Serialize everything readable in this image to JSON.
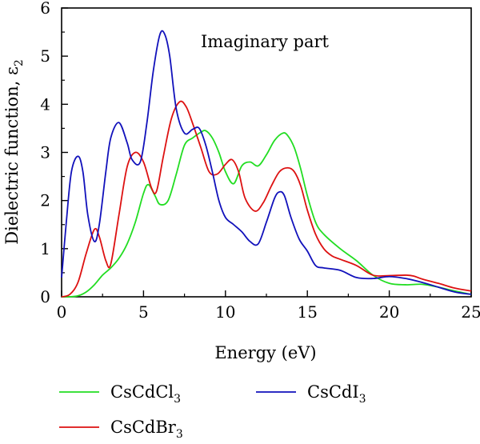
{
  "chart_data": {
    "type": "line",
    "title": "",
    "annotation": "Imaginary part",
    "xlabel": "Energy (eV)",
    "ylabel": "Dielectric function, ε",
    "ylabel_subscript": "2",
    "xlim": [
      0,
      25
    ],
    "ylim": [
      0,
      6
    ],
    "xticks": [
      0,
      5,
      10,
      15,
      20,
      25
    ],
    "yticks": [
      0,
      1,
      2,
      3,
      4,
      5,
      6
    ],
    "grid": false,
    "legend_position": "bottom",
    "series": [
      {
        "name": "CsCdCl",
        "name_subscript": "3",
        "color": "#22dd22",
        "x": [
          0,
          0.5,
          1,
          1.5,
          2,
          2.5,
          3,
          3.5,
          4,
          4.5,
          5,
          5.3,
          5.7,
          6,
          6.5,
          7,
          7.5,
          8,
          8.5,
          8.8,
          9.2,
          9.6,
          10,
          10.5,
          11,
          11.5,
          12,
          12.5,
          13,
          13.5,
          13.8,
          14.2,
          14.6,
          15,
          15.5,
          16,
          17,
          18,
          19,
          20,
          21,
          22,
          23,
          24,
          25
        ],
        "y": [
          0,
          0,
          0.02,
          0.1,
          0.25,
          0.45,
          0.6,
          0.8,
          1.1,
          1.55,
          2.15,
          2.33,
          2.1,
          1.92,
          2.0,
          2.55,
          3.15,
          3.3,
          3.42,
          3.45,
          3.3,
          3.0,
          2.6,
          2.35,
          2.72,
          2.8,
          2.72,
          2.95,
          3.25,
          3.4,
          3.35,
          3.1,
          2.65,
          2.1,
          1.55,
          1.3,
          1.0,
          0.75,
          0.45,
          0.28,
          0.25,
          0.26,
          0.2,
          0.12,
          0.05
        ]
      },
      {
        "name": "CsCdBr",
        "name_subscript": "3",
        "color": "#dd1111",
        "x": [
          0,
          0.5,
          1,
          1.5,
          2,
          2.3,
          2.7,
          3,
          3.5,
          4,
          4.5,
          5,
          5.5,
          5.8,
          6.2,
          6.7,
          7.2,
          7.6,
          8,
          8.5,
          9,
          9.5,
          10,
          10.4,
          10.8,
          11.2,
          11.8,
          12.3,
          12.8,
          13.3,
          13.8,
          14.2,
          14.6,
          15,
          15.5,
          16,
          16.5,
          17,
          18,
          19,
          20,
          21,
          21.5,
          22,
          23,
          24,
          25
        ],
        "y": [
          0,
          0.05,
          0.3,
          0.9,
          1.4,
          1.25,
          0.75,
          0.68,
          1.7,
          2.7,
          3.0,
          2.8,
          2.25,
          2.2,
          2.9,
          3.7,
          4.05,
          3.95,
          3.6,
          3.1,
          2.6,
          2.55,
          2.75,
          2.85,
          2.6,
          2.05,
          1.78,
          1.95,
          2.3,
          2.6,
          2.68,
          2.6,
          2.3,
          1.8,
          1.3,
          1.0,
          0.85,
          0.78,
          0.65,
          0.45,
          0.44,
          0.45,
          0.43,
          0.37,
          0.28,
          0.18,
          0.12
        ]
      },
      {
        "name": "CsCdI",
        "name_subscript": "3",
        "color": "#1111bb",
        "x": [
          0,
          0.3,
          0.6,
          1,
          1.3,
          1.6,
          2,
          2.3,
          2.7,
          3,
          3.5,
          4,
          4.3,
          4.8,
          5.2,
          5.6,
          6,
          6.3,
          6.6,
          7,
          7.5,
          8,
          8.4,
          8.8,
          9.2,
          9.6,
          10,
          10.5,
          11,
          11.5,
          12,
          12.5,
          13,
          13.3,
          13.6,
          14,
          14.5,
          15,
          15.5,
          16,
          17,
          18,
          19,
          20,
          21,
          22,
          23,
          24,
          25
        ],
        "y": [
          0.4,
          1.6,
          2.6,
          2.92,
          2.6,
          1.7,
          1.15,
          1.5,
          2.6,
          3.3,
          3.62,
          3.2,
          2.85,
          2.8,
          3.6,
          4.7,
          5.45,
          5.45,
          5.0,
          3.9,
          3.4,
          3.48,
          3.5,
          3.15,
          2.6,
          2.0,
          1.65,
          1.5,
          1.35,
          1.15,
          1.1,
          1.55,
          2.05,
          2.18,
          2.1,
          1.65,
          1.2,
          0.95,
          0.65,
          0.6,
          0.55,
          0.4,
          0.38,
          0.42,
          0.38,
          0.3,
          0.2,
          0.1,
          0.05
        ]
      }
    ]
  }
}
